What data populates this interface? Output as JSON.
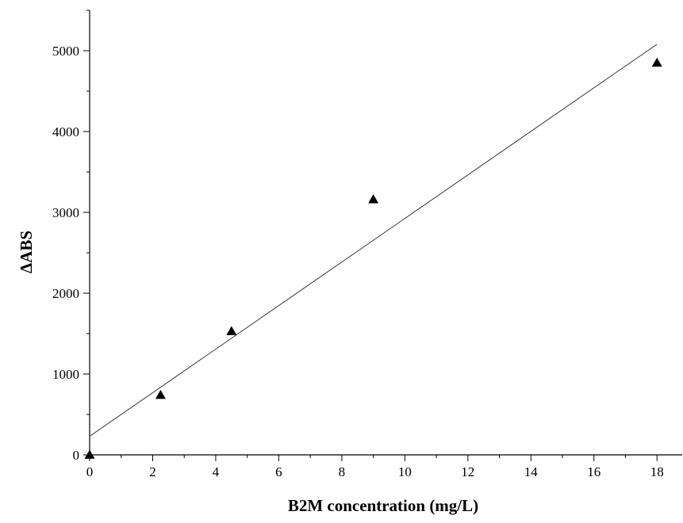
{
  "chart_data": {
    "type": "scatter",
    "xlabel": "B2M concentration (mg/L)",
    "ylabel": "ΔABS",
    "xlim": [
      0,
      18.8
    ],
    "ylim": [
      0,
      5500
    ],
    "xticks": [
      0,
      2,
      4,
      6,
      8,
      10,
      12,
      14,
      16,
      18
    ],
    "yticks": [
      0,
      1000,
      2000,
      3000,
      4000,
      5000
    ],
    "x_minor_step": 1,
    "y_minor_step": 500,
    "grid": false,
    "legend": "none",
    "marker": "triangle",
    "points": [
      {
        "x": 0,
        "y": 0
      },
      {
        "x": 2.25,
        "y": 740
      },
      {
        "x": 4.5,
        "y": 1530
      },
      {
        "x": 9,
        "y": 3160
      },
      {
        "x": 18,
        "y": 4850
      }
    ],
    "fit_line": {
      "x": [
        0,
        18
      ],
      "y": [
        230,
        5080
      ]
    }
  }
}
